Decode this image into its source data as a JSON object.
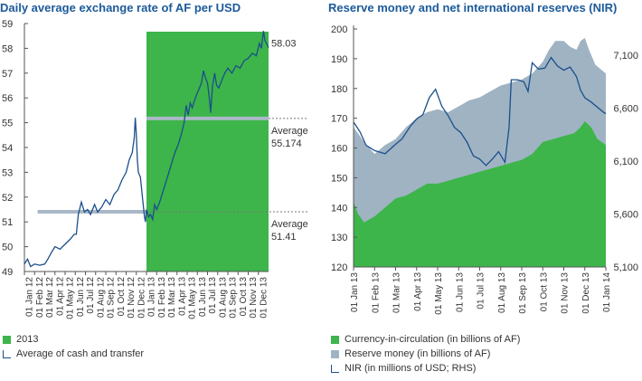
{
  "charts": {
    "left": {
      "title": "Daily average exchange rate of AF per USD",
      "legend": [
        {
          "label": "2013",
          "kind": "box",
          "color": "#3db54a"
        },
        {
          "label": "Average of cash and transfer",
          "kind": "line",
          "color": "#1b4f8c"
        }
      ],
      "annotations": {
        "last_value": "58.03",
        "avg_2013_label": "Average",
        "avg_2013_value": "55.174",
        "avg_2012_label": "Average",
        "avg_2012_value": "51.41"
      }
    },
    "right": {
      "title": "Reserve money and net international reserves (NIR)",
      "legend": [
        {
          "label": "Currency-in-circulation (in billions of AF)",
          "kind": "box",
          "color": "#3db54a"
        },
        {
          "label": "Reserve money (in billions of AF)",
          "kind": "box",
          "color": "#9fb3c3"
        },
        {
          "label": "NIR (in millions of USD; RHS)",
          "kind": "line",
          "color": "#1b4f8c"
        }
      ]
    }
  },
  "chart_data": [
    {
      "type": "line",
      "title": "Daily average exchange rate of AF per USD",
      "ylim": [
        49,
        59
      ],
      "yticks": [
        49,
        50,
        51,
        52,
        53,
        54,
        55,
        56,
        57,
        58,
        59
      ],
      "x_categories": [
        "01 Jan 12",
        "01 Feb 12",
        "01 Mar 12",
        "01 Apr 12",
        "01 May 12",
        "01 Jun 12",
        "01 Jul 12",
        "01 Aug 12",
        "01 Sep 12",
        "01 Oct 12",
        "01 Nov 12",
        "01 Dec 12",
        "01 Jan 13",
        "01 Feb 13",
        "01 Mar 13",
        "01 Apr 13",
        "01 May 13",
        "01 Jun 13",
        "01 Jul 13",
        "01 Aug 13",
        "01 Sep 13",
        "01 Oct 13",
        "01 Nov 13",
        "01 Dec 13"
      ],
      "shaded_region": {
        "name": "2013",
        "from": 12,
        "to": 24,
        "color": "#3db54a"
      },
      "series": [
        {
          "name": "Average of cash and transfer",
          "color": "#1b4f8c",
          "points": [
            [
              0,
              49.3
            ],
            [
              0.3,
              49.5
            ],
            [
              0.6,
              49.2
            ],
            [
              1,
              49.3
            ],
            [
              1.5,
              49.25
            ],
            [
              2,
              49.3
            ],
            [
              2.3,
              49.5
            ],
            [
              2.7,
              49.8
            ],
            [
              3,
              50.0
            ],
            [
              3.5,
              49.9
            ],
            [
              4,
              50.1
            ],
            [
              4.5,
              50.3
            ],
            [
              4.9,
              50.5
            ],
            [
              5.1,
              50.5
            ],
            [
              5.3,
              51.3
            ],
            [
              5.6,
              51.8
            ],
            [
              5.9,
              51.4
            ],
            [
              6.2,
              51.5
            ],
            [
              6.5,
              51.3
            ],
            [
              6.9,
              51.7
            ],
            [
              7.2,
              51.4
            ],
            [
              7.6,
              51.6
            ],
            [
              8,
              51.9
            ],
            [
              8.4,
              51.7
            ],
            [
              8.8,
              52.1
            ],
            [
              9.2,
              52.3
            ],
            [
              9.6,
              52.7
            ],
            [
              10,
              53.0
            ],
            [
              10.3,
              53.5
            ],
            [
              10.6,
              53.8
            ],
            [
              10.8,
              54.4
            ],
            [
              10.9,
              55.2
            ],
            [
              11.0,
              54.5
            ],
            [
              11.1,
              53.5
            ],
            [
              11.2,
              53.0
            ],
            [
              11.4,
              52.8
            ],
            [
              11.6,
              52.0
            ],
            [
              11.8,
              51.2
            ],
            [
              11.9,
              51.0
            ],
            [
              12.0,
              51.5
            ],
            [
              12.2,
              51.2
            ],
            [
              12.4,
              51.3
            ],
            [
              12.6,
              51.1
            ],
            [
              12.8,
              51.7
            ],
            [
              13.0,
              51.5
            ],
            [
              13.3,
              51.8
            ],
            [
              13.6,
              52.2
            ],
            [
              13.9,
              52.6
            ],
            [
              14.2,
              53.0
            ],
            [
              14.5,
              53.4
            ],
            [
              14.8,
              53.8
            ],
            [
              15.1,
              54.1
            ],
            [
              15.4,
              54.5
            ],
            [
              15.7,
              55.0
            ],
            [
              15.9,
              55.7
            ],
            [
              16.1,
              55.3
            ],
            [
              16.3,
              55.8
            ],
            [
              16.5,
              55.6
            ],
            [
              16.8,
              56.0
            ],
            [
              17.1,
              56.3
            ],
            [
              17.4,
              56.6
            ],
            [
              17.6,
              57.1
            ],
            [
              17.8,
              56.8
            ],
            [
              18.0,
              56.6
            ],
            [
              18.2,
              55.9
            ],
            [
              18.3,
              55.4
            ],
            [
              18.5,
              56.5
            ],
            [
              18.7,
              57.0
            ],
            [
              18.9,
              56.5
            ],
            [
              19.1,
              56.4
            ],
            [
              19.4,
              56.7
            ],
            [
              19.7,
              57.0
            ],
            [
              20.0,
              57.2
            ],
            [
              20.4,
              57.0
            ],
            [
              20.8,
              57.3
            ],
            [
              21.2,
              57.2
            ],
            [
              21.6,
              57.5
            ],
            [
              22.0,
              57.6
            ],
            [
              22.4,
              57.8
            ],
            [
              22.8,
              57.7
            ],
            [
              23.1,
              58.2
            ],
            [
              23.3,
              58.0
            ],
            [
              23.5,
              58.7
            ],
            [
              23.65,
              58.3
            ],
            [
              23.8,
              58.2
            ],
            [
              24,
              58.03
            ]
          ]
        }
      ],
      "reference_lines": [
        {
          "name": "Average 2013",
          "value": 55.174,
          "from": 12,
          "to": 24
        },
        {
          "name": "Average 2012",
          "value": 51.41,
          "from": 1.3,
          "to": 12
        }
      ]
    },
    {
      "type": "area",
      "title": "Reserve money and net international reserves (NIR)",
      "ylim_left": [
        120,
        200
      ],
      "yticks_left": [
        120,
        130,
        140,
        150,
        160,
        170,
        180,
        190,
        200
      ],
      "ylim_right": [
        5100,
        7350
      ],
      "yticks_right": [
        5100,
        5600,
        6100,
        6600,
        7100
      ],
      "x_categories": [
        "01 Jan 13",
        "01 Feb 13",
        "01 Mar 13",
        "01 Apr 13",
        "01 May 13",
        "01 Jun 13",
        "01 Jul 13",
        "01 Aug 13",
        "01 Sep 13",
        "01 Oct 13",
        "01 Nov 13",
        "01 Dec 13",
        "01 Jan 14"
      ],
      "series": [
        {
          "name": "Reserve money (in billions of AF)",
          "color": "#9fb3c3",
          "axis": "left",
          "points": [
            [
              0,
              167
            ],
            [
              0.5,
              162
            ],
            [
              1,
              158
            ],
            [
              1.5,
              161
            ],
            [
              2,
              163
            ],
            [
              2.5,
              167
            ],
            [
              3,
              170
            ],
            [
              3.5,
              172
            ],
            [
              4,
              173
            ],
            [
              4.5,
              172
            ],
            [
              5,
              174
            ],
            [
              5.5,
              176
            ],
            [
              6,
              177
            ],
            [
              6.5,
              179
            ],
            [
              7,
              181
            ],
            [
              7.5,
              182
            ],
            [
              8,
              183
            ],
            [
              8.5,
              185
            ],
            [
              9,
              189
            ],
            [
              9.3,
              193
            ],
            [
              9.6,
              196
            ],
            [
              10,
              196
            ],
            [
              10.3,
              194
            ],
            [
              10.6,
              193
            ],
            [
              10.8,
              196
            ],
            [
              11.0,
              197
            ],
            [
              11.2,
              193
            ],
            [
              11.5,
              188
            ],
            [
              12,
              185
            ]
          ]
        },
        {
          "name": "Currency-in-circulation (in billions of AF)",
          "color": "#3db54a",
          "axis": "left",
          "points": [
            [
              0,
              142
            ],
            [
              0.2,
              138
            ],
            [
              0.5,
              135
            ],
            [
              1,
              137
            ],
            [
              1.5,
              140
            ],
            [
              2,
              143
            ],
            [
              2.5,
              144
            ],
            [
              3,
              146
            ],
            [
              3.5,
              148
            ],
            [
              4,
              148
            ],
            [
              4.5,
              149
            ],
            [
              5,
              150
            ],
            [
              5.5,
              151
            ],
            [
              6,
              152
            ],
            [
              6.5,
              153
            ],
            [
              7,
              154
            ],
            [
              7.5,
              155
            ],
            [
              8,
              156
            ],
            [
              8.5,
              158
            ],
            [
              9,
              162
            ],
            [
              9.5,
              163
            ],
            [
              10,
              164
            ],
            [
              10.5,
              165
            ],
            [
              10.8,
              167
            ],
            [
              11,
              169
            ],
            [
              11.3,
              167
            ],
            [
              11.6,
              163
            ],
            [
              12,
              161
            ]
          ]
        },
        {
          "name": "NIR (in millions of USD; RHS)",
          "color": "#1b4f8c",
          "axis": "right",
          "points": [
            [
              0,
              6470
            ],
            [
              0.3,
              6380
            ],
            [
              0.6,
              6250
            ],
            [
              1,
              6200
            ],
            [
              1.5,
              6170
            ],
            [
              2,
              6260
            ],
            [
              2.3,
              6310
            ],
            [
              2.7,
              6430
            ],
            [
              3,
              6500
            ],
            [
              3.3,
              6540
            ],
            [
              3.6,
              6700
            ],
            [
              3.9,
              6780
            ],
            [
              4.2,
              6620
            ],
            [
              4.5,
              6530
            ],
            [
              4.8,
              6420
            ],
            [
              5.1,
              6370
            ],
            [
              5.4,
              6280
            ],
            [
              5.7,
              6150
            ],
            [
              6,
              6120
            ],
            [
              6.3,
              6060
            ],
            [
              6.6,
              6120
            ],
            [
              6.9,
              6190
            ],
            [
              7.2,
              6090
            ],
            [
              7.4,
              6420
            ],
            [
              7.5,
              6870
            ],
            [
              7.8,
              6870
            ],
            [
              8.1,
              6850
            ],
            [
              8.3,
              6760
            ],
            [
              8.5,
              7030
            ],
            [
              8.8,
              6970
            ],
            [
              9.1,
              6980
            ],
            [
              9.4,
              7080
            ],
            [
              9.7,
              7000
            ],
            [
              10,
              6960
            ],
            [
              10.3,
              6990
            ],
            [
              10.6,
              6900
            ],
            [
              10.8,
              6770
            ],
            [
              11.0,
              6700
            ],
            [
              11.3,
              6660
            ],
            [
              11.6,
              6610
            ],
            [
              11.9,
              6560
            ],
            [
              12,
              6550
            ]
          ]
        }
      ]
    }
  ]
}
